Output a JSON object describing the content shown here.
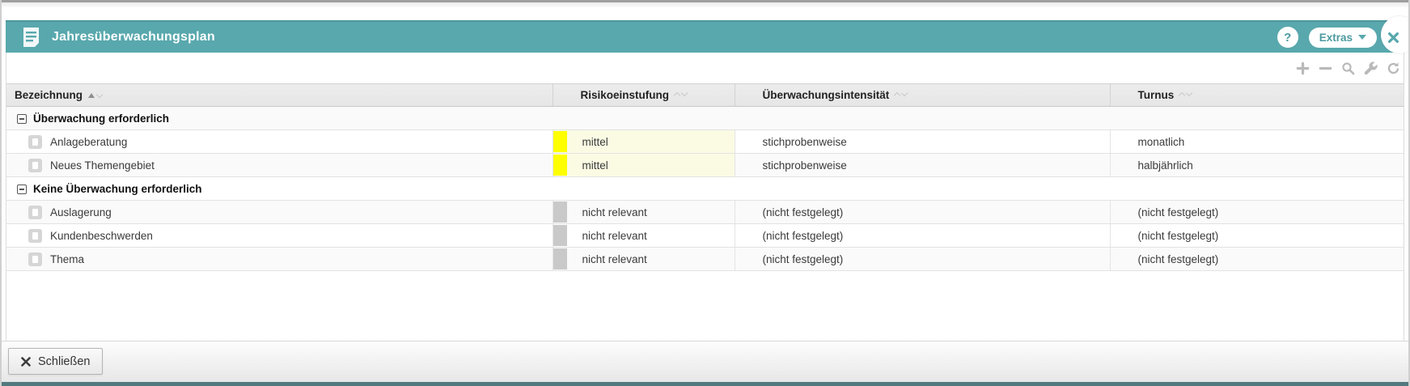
{
  "window": {
    "title": "Jahresüberwachungsplan",
    "help_label": "?",
    "extras_label": "Extras"
  },
  "toolbar": {
    "icons": [
      "add",
      "remove",
      "search",
      "settings",
      "refresh"
    ]
  },
  "table": {
    "columns": [
      {
        "label": "Bezeichnung",
        "sort": "asc"
      },
      {
        "label": "Risikoeinstufung",
        "sort": "none"
      },
      {
        "label": "Überwachungsintensität",
        "sort": "none"
      },
      {
        "label": "Turnus",
        "sort": "none"
      }
    ],
    "groups": [
      {
        "label": "Überwachung erforderlich",
        "rows": [
          {
            "bezeichnung": "Anlageberatung",
            "risikoeinstufung": "mittel",
            "risiko_farbe": "#ffff00",
            "risiko_zelle_bg": "#fbfbe4",
            "ueberwachungsintensitaet": "stichprobenweise",
            "turnus": "monatlich"
          },
          {
            "bezeichnung": "Neues Themengebiet",
            "risikoeinstufung": "mittel",
            "risiko_farbe": "#ffff00",
            "risiko_zelle_bg": "#fbfbe4",
            "ueberwachungsintensitaet": "stichprobenweise",
            "turnus": "halbjährlich"
          }
        ]
      },
      {
        "label": "Keine Überwachung erforderlich",
        "rows": [
          {
            "bezeichnung": "Auslagerung",
            "risikoeinstufung": "nicht relevant",
            "risiko_farbe": "#c9c9c9",
            "risiko_zelle_bg": "",
            "ueberwachungsintensitaet": "(nicht festgelegt)",
            "turnus": "(nicht festgelegt)"
          },
          {
            "bezeichnung": "Kundenbeschwerden",
            "risikoeinstufung": "nicht relevant",
            "risiko_farbe": "#c9c9c9",
            "risiko_zelle_bg": "",
            "ueberwachungsintensitaet": "(nicht festgelegt)",
            "turnus": "(nicht festgelegt)"
          },
          {
            "bezeichnung": "Thema",
            "risikoeinstufung": "nicht relevant",
            "risiko_farbe": "#c9c9c9",
            "risiko_zelle_bg": "",
            "ueberwachungsintensitaet": "(nicht festgelegt)",
            "turnus": "(nicht festgelegt)"
          }
        ]
      }
    ]
  },
  "footer": {
    "close_label": "Schließen"
  },
  "colors": {
    "accent": "#58a8ad",
    "accent_dark": "#4c989e",
    "risk_yellow": "#ffff00",
    "risk_yellow_cell_bg": "#fbfbe4",
    "risk_gray": "#c9c9c9",
    "table_header_bg": "#e9e9e9",
    "row_stripe": "#fafafa",
    "bottom_bar": "#527a7e"
  }
}
